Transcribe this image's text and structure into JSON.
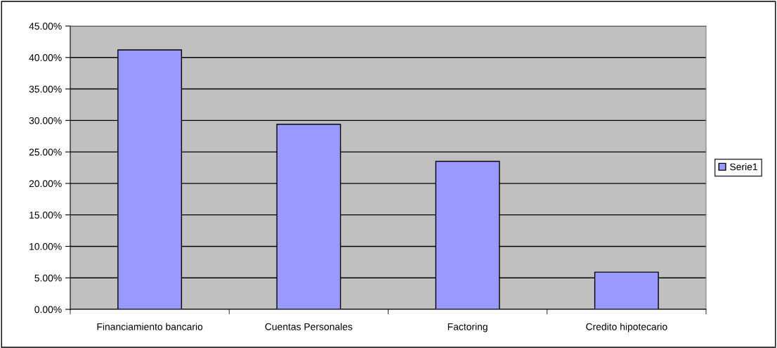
{
  "chart_data": {
    "type": "bar",
    "categories": [
      "Financiamiento bancario",
      "Cuentas Personales",
      "Factoring",
      "Credito hipotecario"
    ],
    "series": [
      {
        "name": "Serie1",
        "color": "#9999ff",
        "values": [
          41.2,
          29.4,
          23.5,
          5.9
        ]
      }
    ],
    "ylim": [
      0,
      45
    ],
    "yticks": [
      {
        "value": 0,
        "label": "0.00%"
      },
      {
        "value": 5,
        "label": "5.00%"
      },
      {
        "value": 10,
        "label": "10.00%"
      },
      {
        "value": 15,
        "label": "15.00%"
      },
      {
        "value": 20,
        "label": "20.00%"
      },
      {
        "value": 25,
        "label": "25.00%"
      },
      {
        "value": 30,
        "label": "30.00%"
      },
      {
        "value": 35,
        "label": "35.00%"
      },
      {
        "value": 40,
        "label": "40.00%"
      },
      {
        "value": 45,
        "label": "45.00%"
      }
    ],
    "grid": "y",
    "legend": "right"
  }
}
